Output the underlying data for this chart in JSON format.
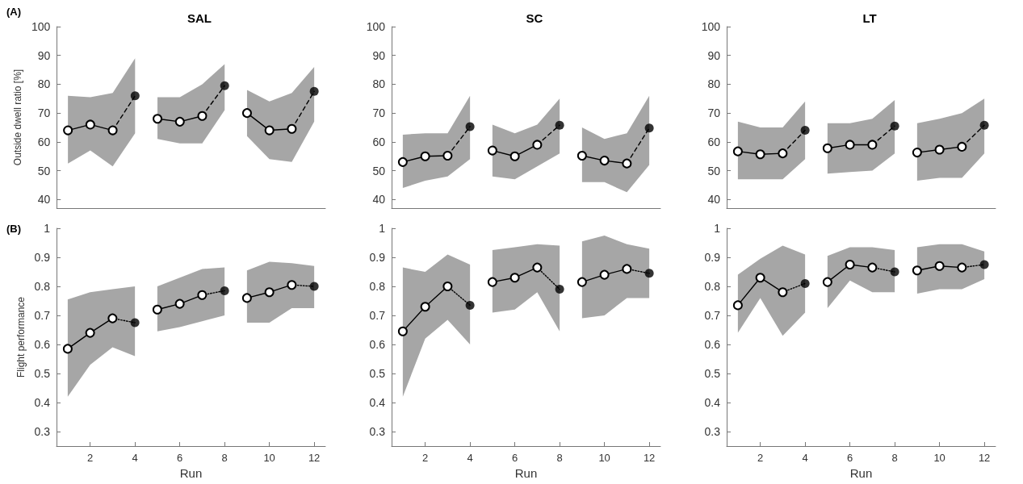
{
  "chart_data": [
    {
      "type": "line",
      "title": "SAL",
      "ylabel": "Outside dwell ratio [%]",
      "annotations": [
        "(A)"
      ],
      "xlim": [
        0.5,
        12.5
      ],
      "xticks": [
        2,
        4,
        6,
        8,
        10,
        12
      ],
      "ylim": [
        37,
        100
      ],
      "yticks": [
        40,
        50,
        60,
        70,
        80,
        90,
        100
      ],
      "tick_labels": "y",
      "grid": false,
      "marker": "circle",
      "line_style": "solid",
      "series": [
        {
          "color": "#000000",
          "x": [
            1,
            2,
            3,
            4
          ],
          "values": [
            64,
            66,
            64,
            null
          ],
          "lower": [
            52.5,
            57,
            51.5,
            63
          ],
          "upper": [
            76,
            75.5,
            77,
            89
          ]
        },
        {
          "color": "#000000",
          "x": [
            5,
            6,
            7,
            8
          ],
          "values": [
            68,
            67,
            69,
            null
          ],
          "lower": [
            61,
            59.5,
            59.5,
            71
          ],
          "upper": [
            75.5,
            75.5,
            80,
            87
          ]
        },
        {
          "color": "#000000",
          "x": [
            9,
            10,
            11,
            12
          ],
          "values": [
            70,
            64,
            64.5,
            null
          ],
          "lower": [
            62,
            54,
            53,
            67
          ],
          "upper": [
            78,
            74,
            77,
            86
          ]
        },
        {
          "color": "#000000",
          "marker": "none",
          "line_style": "dashed",
          "x": [
            3,
            4
          ],
          "values": [
            64,
            76
          ]
        },
        {
          "color": "#000000",
          "marker": "none",
          "line_style": "dashed",
          "x": [
            7,
            8
          ],
          "values": [
            69,
            79.5
          ]
        },
        {
          "color": "#000000",
          "marker": "none",
          "line_style": "dashed",
          "x": [
            11,
            12
          ],
          "values": [
            64.5,
            77.5
          ]
        },
        {
          "type": "scatter",
          "color": "#000000",
          "x": [
            4,
            8,
            12
          ],
          "values": [
            76,
            79.5,
            77.5
          ]
        }
      ]
    },
    {
      "type": "line",
      "title": "SC",
      "xlim": [
        0.5,
        12.5
      ],
      "xticks": [
        2,
        4,
        6,
        8,
        10,
        12
      ],
      "ylim": [
        37,
        100
      ],
      "yticks": [
        40,
        50,
        60,
        70,
        80,
        90,
        100
      ],
      "tick_labels": "y",
      "grid": false,
      "marker": "circle",
      "line_style": "solid",
      "series": [
        {
          "color": "#000000",
          "x": [
            1,
            2,
            3,
            4
          ],
          "values": [
            53,
            55,
            55.2,
            null
          ],
          "lower": [
            44,
            46.5,
            48,
            54
          ],
          "upper": [
            62.5,
            63,
            63,
            76
          ]
        },
        {
          "color": "#000000",
          "x": [
            5,
            6,
            7,
            8
          ],
          "values": [
            57,
            55,
            59,
            null
          ],
          "lower": [
            48,
            47,
            51.5,
            56
          ],
          "upper": [
            66,
            63,
            66,
            75
          ]
        },
        {
          "color": "#000000",
          "x": [
            9,
            10,
            11,
            12
          ],
          "values": [
            55.2,
            53.5,
            52.5,
            null
          ],
          "lower": [
            46,
            46,
            42.5,
            52
          ],
          "upper": [
            65,
            61,
            63,
            76
          ]
        },
        {
          "color": "#000000",
          "marker": "none",
          "line_style": "dashed",
          "x": [
            3,
            4
          ],
          "values": [
            55.2,
            65.3
          ]
        },
        {
          "color": "#000000",
          "marker": "none",
          "line_style": "dashed",
          "x": [
            7,
            8
          ],
          "values": [
            59,
            65.8
          ]
        },
        {
          "color": "#000000",
          "marker": "none",
          "line_style": "dashed",
          "x": [
            11,
            12
          ],
          "values": [
            52.5,
            64.8
          ]
        },
        {
          "type": "scatter",
          "color": "#000000",
          "x": [
            4,
            8,
            12
          ],
          "values": [
            65.3,
            65.8,
            64.8
          ]
        }
      ]
    },
    {
      "type": "line",
      "title": "LT",
      "xlim": [
        0.5,
        12.5
      ],
      "xticks": [
        2,
        4,
        6,
        8,
        10,
        12
      ],
      "ylim": [
        37,
        100
      ],
      "yticks": [
        40,
        50,
        60,
        70,
        80,
        90,
        100
      ],
      "tick_labels": "y",
      "grid": false,
      "marker": "circle",
      "line_style": "solid",
      "series": [
        {
          "color": "#000000",
          "x": [
            1,
            2,
            3,
            4
          ],
          "values": [
            56.7,
            55.7,
            56,
            null
          ],
          "lower": [
            47,
            47,
            47,
            54
          ],
          "upper": [
            67,
            65,
            65,
            74
          ]
        },
        {
          "color": "#000000",
          "x": [
            5,
            6,
            7,
            8
          ],
          "values": [
            57.8,
            59,
            59,
            null
          ],
          "lower": [
            49,
            49.5,
            50,
            56
          ],
          "upper": [
            66.5,
            66.5,
            68,
            74.5
          ]
        },
        {
          "color": "#000000",
          "x": [
            9,
            10,
            11,
            12
          ],
          "values": [
            56.3,
            57.3,
            58.3,
            null
          ],
          "lower": [
            46.5,
            47.5,
            47.5,
            56
          ],
          "upper": [
            66.5,
            68,
            70,
            75
          ]
        },
        {
          "color": "#000000",
          "marker": "none",
          "line_style": "dashed",
          "x": [
            3,
            4
          ],
          "values": [
            56,
            64
          ]
        },
        {
          "color": "#000000",
          "marker": "none",
          "line_style": "dashed",
          "x": [
            7,
            8
          ],
          "values": [
            59,
            65.5
          ]
        },
        {
          "color": "#000000",
          "marker": "none",
          "line_style": "dashed",
          "x": [
            11,
            12
          ],
          "values": [
            58.3,
            65.8
          ]
        },
        {
          "type": "scatter",
          "color": "#000000",
          "x": [
            4,
            8,
            12
          ],
          "values": [
            64,
            65.5,
            65.8
          ]
        }
      ]
    },
    {
      "type": "line",
      "xlabel": "Run",
      "ylabel": "Flight performance",
      "annotations": [
        "(B)"
      ],
      "xlim": [
        0.5,
        12.5
      ],
      "xticks": [
        2,
        4,
        6,
        8,
        10,
        12
      ],
      "ylim": [
        0.25,
        1
      ],
      "yticks": [
        0.3,
        0.4,
        0.5,
        0.6,
        0.7,
        0.8,
        0.9,
        1
      ],
      "grid": false,
      "marker": "circle",
      "line_style": "solid",
      "series": [
        {
          "color": "#000000",
          "x": [
            1,
            2,
            3,
            4
          ],
          "values": [
            0.585,
            0.64,
            0.69,
            null
          ],
          "lower": [
            0.42,
            0.53,
            0.59,
            0.56
          ],
          "upper": [
            0.755,
            0.78,
            0.79,
            0.8
          ]
        },
        {
          "color": "#000000",
          "x": [
            5,
            6,
            7,
            8
          ],
          "values": [
            0.72,
            0.74,
            0.77,
            null
          ],
          "lower": [
            0.645,
            0.66,
            0.68,
            0.7
          ],
          "upper": [
            0.8,
            0.83,
            0.86,
            0.865
          ]
        },
        {
          "color": "#000000",
          "x": [
            9,
            10,
            11,
            12
          ],
          "values": [
            0.76,
            0.78,
            0.805,
            null
          ],
          "lower": [
            0.675,
            0.675,
            0.725,
            0.725
          ],
          "upper": [
            0.855,
            0.885,
            0.88,
            0.87
          ]
        },
        {
          "color": "#000000",
          "marker": "none",
          "line_style": "dotted",
          "x": [
            3,
            4
          ],
          "values": [
            0.69,
            0.675
          ]
        },
        {
          "color": "#000000",
          "marker": "none",
          "line_style": "dotted",
          "x": [
            7,
            8
          ],
          "values": [
            0.77,
            0.785
          ]
        },
        {
          "color": "#000000",
          "marker": "none",
          "line_style": "dotted",
          "x": [
            11,
            12
          ],
          "values": [
            0.805,
            0.8
          ]
        },
        {
          "type": "scatter",
          "color": "#000000",
          "x": [
            4,
            8,
            12
          ],
          "values": [
            0.675,
            0.785,
            0.8
          ]
        }
      ]
    },
    {
      "type": "line",
      "xlabel": "Run",
      "xlim": [
        0.5,
        12.5
      ],
      "xticks": [
        2,
        4,
        6,
        8,
        10,
        12
      ],
      "ylim": [
        0.25,
        1
      ],
      "yticks": [
        0.3,
        0.4,
        0.5,
        0.6,
        0.7,
        0.8,
        0.9,
        1
      ],
      "grid": false,
      "marker": "circle",
      "line_style": "solid",
      "series": [
        {
          "color": "#000000",
          "x": [
            1,
            2,
            3,
            4
          ],
          "values": [
            0.645,
            0.73,
            0.8,
            null
          ],
          "lower": [
            0.42,
            0.62,
            0.685,
            0.6
          ],
          "upper": [
            0.865,
            0.85,
            0.91,
            0.875
          ]
        },
        {
          "color": "#000000",
          "x": [
            5,
            6,
            7,
            8
          ],
          "values": [
            0.815,
            0.83,
            0.865,
            null
          ],
          "lower": [
            0.71,
            0.72,
            0.78,
            0.645
          ],
          "upper": [
            0.925,
            0.935,
            0.945,
            0.94
          ]
        },
        {
          "color": "#000000",
          "x": [
            9,
            10,
            11,
            12
          ],
          "values": [
            0.815,
            0.84,
            0.86,
            null
          ],
          "lower": [
            0.69,
            0.7,
            0.76,
            0.76
          ],
          "upper": [
            0.955,
            0.975,
            0.945,
            0.93
          ]
        },
        {
          "color": "#000000",
          "marker": "none",
          "line_style": "dotted",
          "x": [
            3,
            4
          ],
          "values": [
            0.8,
            0.735
          ]
        },
        {
          "color": "#000000",
          "marker": "none",
          "line_style": "dotted",
          "x": [
            7,
            8
          ],
          "values": [
            0.865,
            0.79
          ]
        },
        {
          "color": "#000000",
          "marker": "none",
          "line_style": "dotted",
          "x": [
            11,
            12
          ],
          "values": [
            0.86,
            0.845
          ]
        },
        {
          "type": "scatter",
          "color": "#000000",
          "x": [
            4,
            8,
            12
          ],
          "values": [
            0.735,
            0.79,
            0.845
          ]
        }
      ]
    },
    {
      "type": "line",
      "xlabel": "Run",
      "xlim": [
        0.5,
        12.5
      ],
      "xticks": [
        2,
        4,
        6,
        8,
        10,
        12
      ],
      "ylim": [
        0.25,
        1
      ],
      "yticks": [
        0.3,
        0.4,
        0.5,
        0.6,
        0.7,
        0.8,
        0.9,
        1
      ],
      "grid": false,
      "marker": "circle",
      "line_style": "solid",
      "series": [
        {
          "color": "#000000",
          "x": [
            1,
            2,
            3,
            4
          ],
          "values": [
            0.735,
            0.83,
            0.78,
            null
          ],
          "lower": [
            0.64,
            0.76,
            0.63,
            0.71
          ],
          "upper": [
            0.84,
            0.895,
            0.94,
            0.91
          ]
        },
        {
          "color": "#000000",
          "x": [
            5,
            6,
            7,
            8
          ],
          "values": [
            0.815,
            0.875,
            0.865,
            null
          ],
          "lower": [
            0.725,
            0.82,
            0.78,
            0.78
          ],
          "upper": [
            0.905,
            0.935,
            0.935,
            0.925
          ]
        },
        {
          "color": "#000000",
          "x": [
            9,
            10,
            11,
            12
          ],
          "values": [
            0.855,
            0.87,
            0.865,
            null
          ],
          "lower": [
            0.775,
            0.79,
            0.79,
            0.825
          ],
          "upper": [
            0.935,
            0.945,
            0.945,
            0.92
          ]
        },
        {
          "color": "#000000",
          "marker": "none",
          "line_style": "dotted",
          "x": [
            3,
            4
          ],
          "values": [
            0.78,
            0.81
          ]
        },
        {
          "color": "#000000",
          "marker": "none",
          "line_style": "dotted",
          "x": [
            7,
            8
          ],
          "values": [
            0.865,
            0.85
          ]
        },
        {
          "color": "#000000",
          "marker": "none",
          "line_style": "dotted",
          "x": [
            11,
            12
          ],
          "values": [
            0.865,
            0.875
          ]
        },
        {
          "type": "scatter",
          "color": "#000000",
          "x": [
            4,
            8,
            12
          ],
          "values": [
            0.81,
            0.85,
            0.875
          ]
        }
      ]
    }
  ]
}
